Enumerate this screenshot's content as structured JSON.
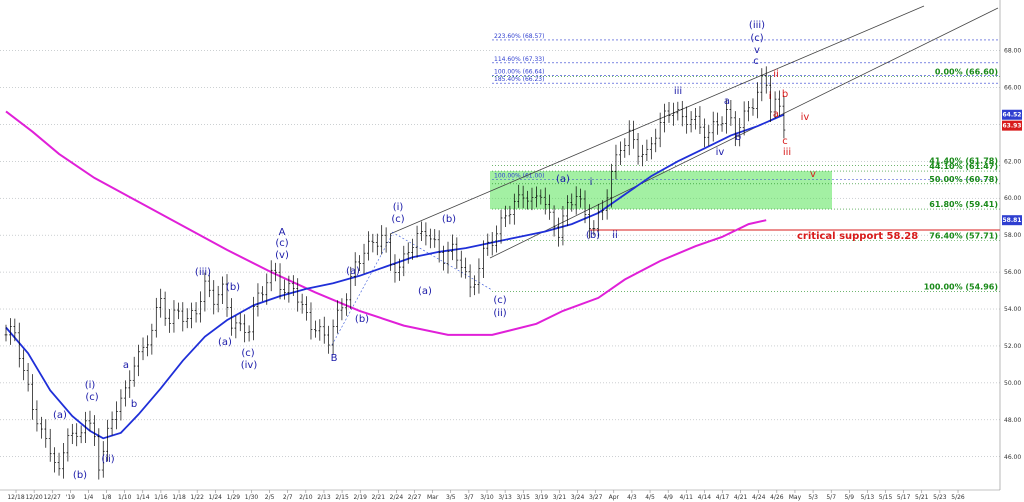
{
  "chart_data": {
    "type": "candlestick",
    "yticks": [
      "46.00",
      "48.00",
      "50.00",
      "52.00",
      "54.00",
      "56.00",
      "58.00",
      "60.00",
      "62.00",
      "64.00",
      "66.00",
      "68.00"
    ],
    "ylim": [
      44.2,
      70.3
    ],
    "xticks": [
      "12/18",
      "12/20",
      "12/27",
      "'19",
      "1/4",
      "1/8",
      "1/10",
      "1/14",
      "1/16",
      "1/18",
      "1/22",
      "1/24",
      "1/29",
      "1/30",
      "2/5",
      "2/7",
      "2/10",
      "2/13",
      "2/15",
      "2/19",
      "2/21",
      "2/24",
      "2/27",
      "Mar",
      "3/5",
      "3/7",
      "3/10",
      "3/13",
      "3/15",
      "3/19",
      "3/21",
      "3/24",
      "3/27",
      "Apr",
      "4/3",
      "4/5",
      "4/9",
      "4/11",
      "4/14",
      "4/17",
      "4/21",
      "4/24",
      "4/26",
      "May",
      "5/3",
      "5/7",
      "5/9",
      "5/13",
      "5/15",
      "5/17",
      "5/21",
      "5/23",
      "5/26"
    ],
    "price_badges": [
      {
        "text": "64.52",
        "color": "#2f3fd0"
      },
      {
        "text": "63.93",
        "color": "#d81b1b"
      },
      {
        "text": "58.81",
        "color": "#2f3fd0"
      }
    ],
    "price_path": [
      [
        0,
        52.6
      ],
      [
        2,
        52.8
      ],
      [
        4,
        50.5
      ],
      [
        6,
        48.8
      ],
      [
        8,
        47.2
      ],
      [
        10,
        46.5
      ],
      [
        12,
        45.0
      ],
      [
        14,
        47.5
      ],
      [
        16,
        46.8
      ],
      [
        18,
        48.2
      ],
      [
        20,
        46.9
      ],
      [
        21,
        45.6
      ],
      [
        23,
        47.2
      ],
      [
        25,
        48.8
      ],
      [
        27,
        49.4
      ],
      [
        29,
        51.2
      ],
      [
        31,
        51.7
      ],
      [
        33,
        53.0
      ],
      [
        35,
        54.5
      ],
      [
        37,
        53.2
      ],
      [
        39,
        54.0
      ],
      [
        41,
        53.3
      ],
      [
        43,
        54.0
      ],
      [
        45,
        55.2
      ],
      [
        47,
        54.6
      ],
      [
        49,
        55.0
      ],
      [
        51,
        53.3
      ],
      [
        53,
        52.9
      ],
      [
        55,
        53.0
      ],
      [
        57,
        54.7
      ],
      [
        59,
        55.5
      ],
      [
        61,
        56.0
      ],
      [
        63,
        54.8
      ],
      [
        65,
        55.3
      ],
      [
        67,
        54.0
      ],
      [
        69,
        53.2
      ],
      [
        71,
        52.7
      ],
      [
        73,
        52.4
      ],
      [
        75,
        53.6
      ],
      [
        77,
        54.8
      ],
      [
        79,
        56.3
      ],
      [
        81,
        57.2
      ],
      [
        83,
        57.5
      ],
      [
        85,
        58.0
      ],
      [
        87,
        56.5
      ],
      [
        89,
        56.1
      ],
      [
        91,
        57.3
      ],
      [
        93,
        57.8
      ],
      [
        95,
        58.3
      ],
      [
        97,
        57.4
      ],
      [
        99,
        56.8
      ],
      [
        101,
        57.2
      ],
      [
        103,
        56.5
      ],
      [
        105,
        55.0
      ],
      [
        107,
        56.3
      ],
      [
        109,
        57.6
      ],
      [
        111,
        58.0
      ],
      [
        113,
        59.2
      ],
      [
        115,
        59.6
      ],
      [
        117,
        60.3
      ],
      [
        119,
        59.7
      ],
      [
        121,
        60.4
      ],
      [
        123,
        58.9
      ],
      [
        125,
        58.2
      ],
      [
        127,
        59.5
      ],
      [
        129,
        60.3
      ],
      [
        131,
        59.0
      ],
      [
        133,
        58.4
      ],
      [
        135,
        59.4
      ],
      [
        137,
        61.3
      ],
      [
        139,
        62.8
      ],
      [
        141,
        63.4
      ],
      [
        143,
        62.6
      ],
      [
        145,
        62.3
      ],
      [
        147,
        63.6
      ],
      [
        149,
        64.4
      ],
      [
        151,
        64.9
      ],
      [
        153,
        64.2
      ],
      [
        155,
        64.4
      ],
      [
        157,
        63.8
      ],
      [
        159,
        63.5
      ],
      [
        161,
        64.1
      ],
      [
        163,
        64.6
      ],
      [
        165,
        63.6
      ],
      [
        167,
        64.4
      ],
      [
        169,
        65.2
      ],
      [
        171,
        66.3
      ],
      [
        172,
        66.2
      ],
      [
        173,
        65.0
      ],
      [
        174,
        65.2
      ],
      [
        175,
        64.7
      ],
      [
        176,
        63.93
      ]
    ],
    "ma_blue": [
      [
        0,
        53.0
      ],
      [
        5,
        51.6
      ],
      [
        10,
        49.6
      ],
      [
        15,
        48.2
      ],
      [
        19,
        47.4
      ],
      [
        22,
        47.0
      ],
      [
        26,
        47.3
      ],
      [
        30,
        48.3
      ],
      [
        35,
        49.7
      ],
      [
        40,
        51.2
      ],
      [
        45,
        52.5
      ],
      [
        50,
        53.4
      ],
      [
        56,
        54.2
      ],
      [
        62,
        54.7
      ],
      [
        68,
        55.1
      ],
      [
        74,
        55.4
      ],
      [
        80,
        55.8
      ],
      [
        86,
        56.3
      ],
      [
        92,
        56.8
      ],
      [
        98,
        57.1
      ],
      [
        104,
        57.3
      ],
      [
        110,
        57.6
      ],
      [
        116,
        57.9
      ],
      [
        122,
        58.2
      ],
      [
        128,
        58.6
      ],
      [
        134,
        59.2
      ],
      [
        140,
        60.2
      ],
      [
        146,
        61.2
      ],
      [
        152,
        62.0
      ],
      [
        158,
        62.7
      ],
      [
        164,
        63.4
      ],
      [
        170,
        63.9
      ],
      [
        176,
        64.52
      ]
    ],
    "ma_magenta": [
      [
        0,
        64.7
      ],
      [
        6,
        63.6
      ],
      [
        12,
        62.4
      ],
      [
        20,
        61.1
      ],
      [
        30,
        59.8
      ],
      [
        40,
        58.5
      ],
      [
        50,
        57.2
      ],
      [
        60,
        56.0
      ],
      [
        70,
        54.9
      ],
      [
        80,
        53.9
      ],
      [
        90,
        53.1
      ],
      [
        100,
        52.6
      ],
      [
        110,
        52.6
      ],
      [
        120,
        53.2
      ],
      [
        126,
        53.9
      ],
      [
        134,
        54.6
      ],
      [
        140,
        55.6
      ],
      [
        148,
        56.6
      ],
      [
        156,
        57.4
      ],
      [
        162,
        57.9
      ],
      [
        168,
        58.6
      ],
      [
        172,
        58.81
      ]
    ],
    "fib_levels": [
      {
        "text": "223.60% (68.57)",
        "value": 68.57,
        "color": "#2f3fd0",
        "side": "left"
      },
      {
        "text": "114.60% (67.33)",
        "value": 67.33,
        "color": "#2f3fd0",
        "side": "left"
      },
      {
        "text": "100.00% (66.64)",
        "value": 66.64,
        "color": "#2f3fd0",
        "side": "left"
      },
      {
        "text": "185.40% (66.23)",
        "value": 66.23,
        "color": "#2f3fd0",
        "side": "left"
      },
      {
        "text": "100.00% (61.00)",
        "value": 61.0,
        "color": "#2f3fd0",
        "side": "left"
      },
      {
        "text": "0.00% (66.60)",
        "value": 66.6,
        "color": "#1a8a1a",
        "side": "right"
      },
      {
        "text": "41.40% (61.78)",
        "value": 61.78,
        "color": "#1a8a1a",
        "side": "right"
      },
      {
        "text": "44.10% (61.47)",
        "value": 61.47,
        "color": "#1a8a1a",
        "side": "right"
      },
      {
        "text": "50.00% (60.78)",
        "value": 60.78,
        "color": "#1a8a1a",
        "side": "right"
      },
      {
        "text": "61.80% (59.41)",
        "value": 59.41,
        "color": "#1a8a1a",
        "side": "right"
      },
      {
        "text": "76.40% (57.71)",
        "value": 57.71,
        "color": "#1a8a1a",
        "side": "right"
      },
      {
        "text": "100.00% (54.96)",
        "value": 54.96,
        "color": "#1a8a1a",
        "side": "right"
      }
    ],
    "critical_support": {
      "text": "critical support 58.28",
      "value": 58.28,
      "color": "#d81b1b"
    },
    "support_zone": {
      "from": 59.41,
      "to": 61.47,
      "color": "#33dd33"
    },
    "wave_labels": [
      {
        "text": "(a)",
        "color": "#1a1aa8"
      },
      {
        "text": "(b)",
        "color": "#1a1aa8"
      },
      {
        "text": "(i)",
        "color": "#1a1aa8"
      },
      {
        "text": "(c)",
        "color": "#1a1aa8"
      },
      {
        "text": "(ii)",
        "color": "#1a1aa8"
      },
      {
        "text": "a",
        "color": "#1a1aa8"
      },
      {
        "text": "b",
        "color": "#1a1aa8"
      },
      {
        "text": "(iii)",
        "color": "#1a1aa8"
      },
      {
        "text": "(a)",
        "color": "#1a1aa8"
      },
      {
        "text": "(b)",
        "color": "#1a1aa8"
      },
      {
        "text": "(c)",
        "color": "#1a1aa8"
      },
      {
        "text": "(iv)",
        "color": "#1a1aa8"
      },
      {
        "text": "A",
        "color": "#1a1aa8"
      },
      {
        "text": "(c)",
        "color": "#1a1aa8"
      },
      {
        "text": "(v)",
        "color": "#1a1aa8"
      },
      {
        "text": "B",
        "color": "#1a1aa8"
      },
      {
        "text": "(a)",
        "color": "#1a1aa8"
      },
      {
        "text": "(b)",
        "color": "#1a1aa8"
      },
      {
        "text": "(i)",
        "color": "#1a1aa8"
      },
      {
        "text": "(c)",
        "color": "#1a1aa8"
      },
      {
        "text": "(b)",
        "color": "#1a1aa8"
      },
      {
        "text": "(a)",
        "color": "#1a1aa8"
      },
      {
        "text": "(c)",
        "color": "#1a1aa8"
      },
      {
        "text": "(ii)",
        "color": "#1a1aa8"
      },
      {
        "text": "(a)",
        "color": "#1a1aa8"
      },
      {
        "text": "i",
        "color": "#1a1aa8"
      },
      {
        "text": "(b)",
        "color": "#1a1aa8"
      },
      {
        "text": "ii",
        "color": "#1a1aa8"
      },
      {
        "text": "iii",
        "color": "#1a1aa8"
      },
      {
        "text": "iv",
        "color": "#1a1aa8"
      },
      {
        "text": "a",
        "color": "#1a1aa8"
      },
      {
        "text": "b",
        "color": "#1a1aa8"
      },
      {
        "text": "(iii)",
        "color": "#1a1aa8"
      },
      {
        "text": "(c)",
        "color": "#1a1aa8"
      },
      {
        "text": "v",
        "color": "#1a1aa8"
      },
      {
        "text": "c",
        "color": "#1a1aa8"
      },
      {
        "text": "ii",
        "color": "#d81b1b"
      },
      {
        "text": "i",
        "color": "#d81b1b"
      },
      {
        "text": "b",
        "color": "#d81b1b"
      },
      {
        "text": "a",
        "color": "#d81b1b"
      },
      {
        "text": "iv",
        "color": "#d81b1b"
      },
      {
        "text": "c",
        "color": "#d81b1b"
      },
      {
        "text": "iii",
        "color": "#d81b1b"
      },
      {
        "text": "v",
        "color": "#d81b1b"
      }
    ],
    "colors": {
      "price": "#000000",
      "ma_blue": "#1f2fd8",
      "ma_magenta": "#e020d8",
      "channel": "#444444",
      "grid": "#9aa0a6"
    }
  }
}
